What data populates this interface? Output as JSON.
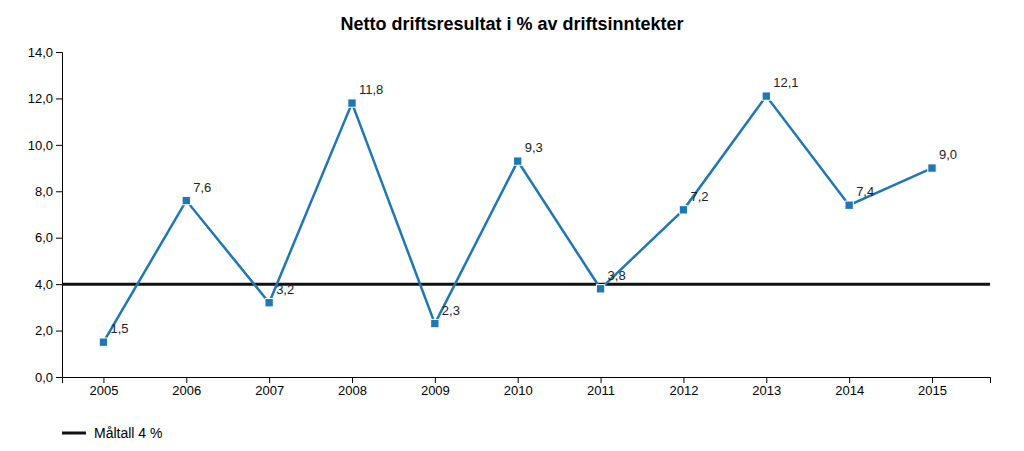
{
  "chart_data": {
    "type": "line",
    "title": "Netto driftsresultat i % av driftsinntekter",
    "x": [
      2005,
      2006,
      2007,
      2008,
      2009,
      2010,
      2011,
      2012,
      2013,
      2014,
      2015
    ],
    "xlim": [
      2004.5,
      2015.7
    ],
    "xticks": [
      2005,
      2006,
      2007,
      2008,
      2009,
      2010,
      2011,
      2012,
      2013,
      2014,
      2015
    ],
    "ylim": [
      0,
      14
    ],
    "yticks": [
      {
        "value": 0.0,
        "label": "0,0"
      },
      {
        "value": 2.0,
        "label": "2,0"
      },
      {
        "value": 4.0,
        "label": "4,0"
      },
      {
        "value": 6.0,
        "label": "6,0"
      },
      {
        "value": 8.0,
        "label": "8,0"
      },
      {
        "value": 10.0,
        "label": "10,0"
      },
      {
        "value": 12.0,
        "label": "12,0"
      },
      {
        "value": 14.0,
        "label": "14,0"
      }
    ],
    "grid": false,
    "legend": "bottom",
    "data_labels": true,
    "series": [
      {
        "values": [
          1.5,
          7.6,
          3.2,
          11.8,
          2.3,
          9.3,
          3.8,
          7.2,
          12.1,
          7.4,
          9.0
        ],
        "value_labels": [
          "1,5",
          "7,6",
          "3,2",
          "11,8",
          "2,3",
          "9,3",
          "3,8",
          "7,2",
          "12,1",
          "7,4",
          "9,0"
        ],
        "marker": "square"
      }
    ],
    "reference_lines": [
      {
        "name": "Måltall 4 %",
        "value": 4.0,
        "color": "#111111"
      }
    ]
  }
}
